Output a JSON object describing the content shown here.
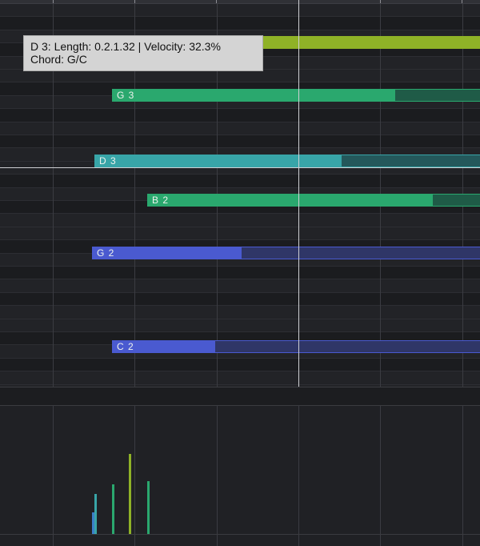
{
  "tooltip": {
    "line1": "D 3:  Length: 0.2.1.32 | Velocity: 32.3%",
    "line2": "Chord: G/C"
  },
  "colors": {
    "green_yellow": "#8fb227",
    "green": "#2aa86e",
    "teal": "#38a5a8",
    "indigo": "#4a5ad0",
    "blue": "#3c7fc8"
  },
  "notes": [
    {
      "name": "",
      "color": "#8fb227",
      "velocity": 100
    },
    {
      "name": "G 3",
      "color": "#2aa86e",
      "velocity": 75
    },
    {
      "name": "D 3",
      "color": "#38a5a8",
      "velocity": 32.3
    },
    {
      "name": "B 2",
      "color": "#2aa86e",
      "velocity": 70
    },
    {
      "name": "G 2",
      "color": "#4a5ad0",
      "velocity": 30
    },
    {
      "name": "C 2",
      "color": "#4a5ad0",
      "velocity": 28
    }
  ]
}
